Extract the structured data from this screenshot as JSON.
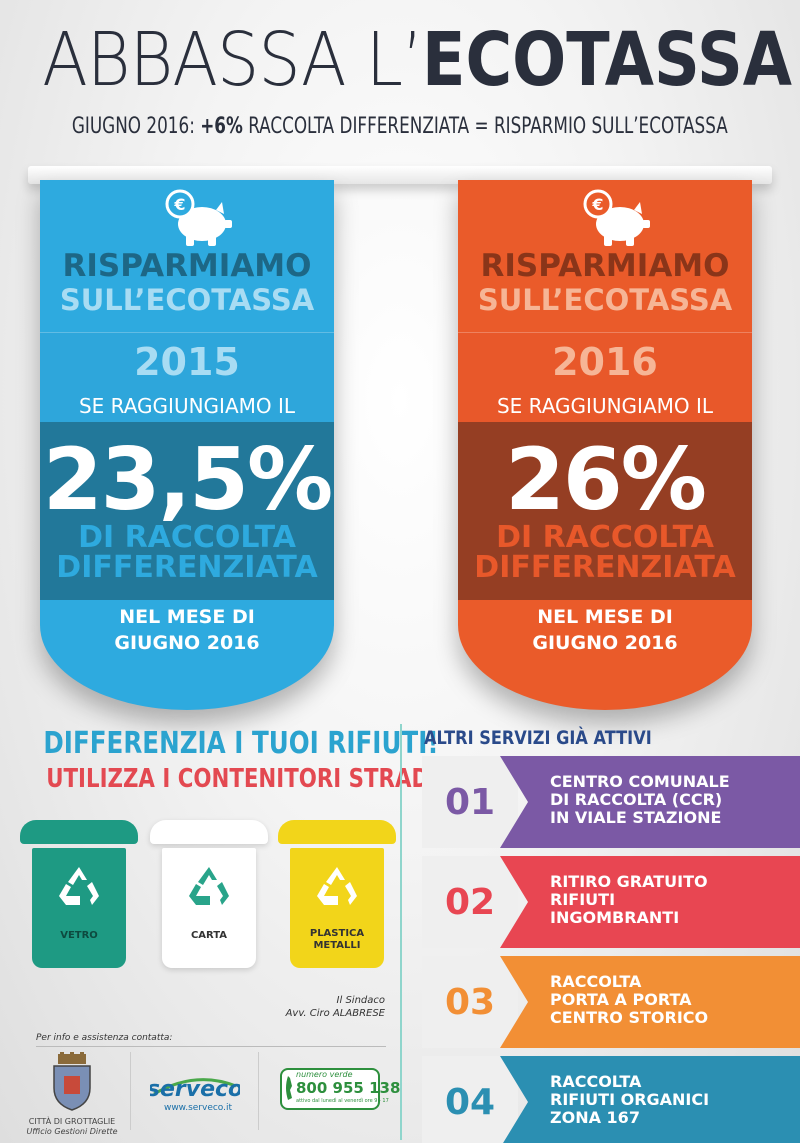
{
  "header": {
    "title_light": "ABBASSA L’",
    "title_bold": "ECOTASSA",
    "subtitle_pre": "GIUGNO 2016: ",
    "subtitle_bold": "+6%",
    "subtitle_post": " RACCOLTA DIFFERENZIATA = RISPARMIO SULL’ECOTASSA"
  },
  "tags": [
    {
      "line1": "RISPARMIAMO",
      "line2": "SULL’ECOTASSA",
      "year": "2015",
      "reach": "SE RAGGIUNGIAMO IL",
      "percent": "23,5%",
      "desc1": "DI RACCOLTA",
      "desc2": "DIFFERENZIATA",
      "month1": "NEL MESE DI",
      "month2": "GIUGNO 2016",
      "color": "#2eaadf",
      "icon": "piggy-bank-euro-icon"
    },
    {
      "line1": "RISPARMIAMO",
      "line2": "SULL’ECOTASSA",
      "year": "2016",
      "reach": "SE RAGGIUNGIAMO IL",
      "percent": "26%",
      "desc1": "DI RACCOLTA",
      "desc2": "DIFFERENZIATA",
      "month1": "NEL MESE DI",
      "month2": "GIUGNO 2016",
      "color": "#ea5b2a",
      "icon": "piggy-bank-euro-icon"
    }
  ],
  "recycling": {
    "title": "DIFFERENZIA I TUOI RIFIUTI!",
    "subtitle": "UTILIZZA I CONTENITORI STRADALI",
    "bins": [
      {
        "label": "VETRO",
        "color": "#1e9a83",
        "icon": "recycle-icon"
      },
      {
        "label": "CARTA",
        "color": "#ffffff",
        "icon": "recycle-icon"
      },
      {
        "label1": "PLASTICA",
        "label2": "METALLI",
        "color": "#f2d51a",
        "icon": "recycle-icon"
      }
    ]
  },
  "signature": {
    "role": "Il Sindaco",
    "name": "Avv. Ciro ALABRESE"
  },
  "footer": {
    "info_label": "Per info e assistenza contatta:",
    "city_name": "CITTÀ DI GROTTAGLIE",
    "city_office": "Ufficio Gestioni Dirette",
    "serveco_logo_text": "serveco",
    "serveco_url": "www.serveco.it",
    "phone_label": "numero verde",
    "phone_number": "800 955 138",
    "phone_hours": "attivo dal lunedì al venerdì ore 9 - 17"
  },
  "services": {
    "title": "ALTRI SERVIZI GIÀ ATTIVI",
    "items": [
      {
        "num": "01",
        "lines": [
          "CENTRO COMUNALE",
          "DI RACCOLTA (CCR)",
          "IN VIALE STAZIONE"
        ],
        "color": "#7b59a5"
      },
      {
        "num": "02",
        "lines": [
          "RITIRO GRATUITO",
          "RIFIUTI",
          "INGOMBRANTI"
        ],
        "color": "#e84652"
      },
      {
        "num": "03",
        "lines": [
          "RACCOLTA",
          "PORTA A PORTA",
          "CENTRO STORICO"
        ],
        "color": "#f28f35"
      },
      {
        "num": "04",
        "lines": [
          "RACCOLTA",
          "RIFIUTI ORGANICI",
          "ZONA 167"
        ],
        "color": "#2b8fb2"
      }
    ]
  }
}
